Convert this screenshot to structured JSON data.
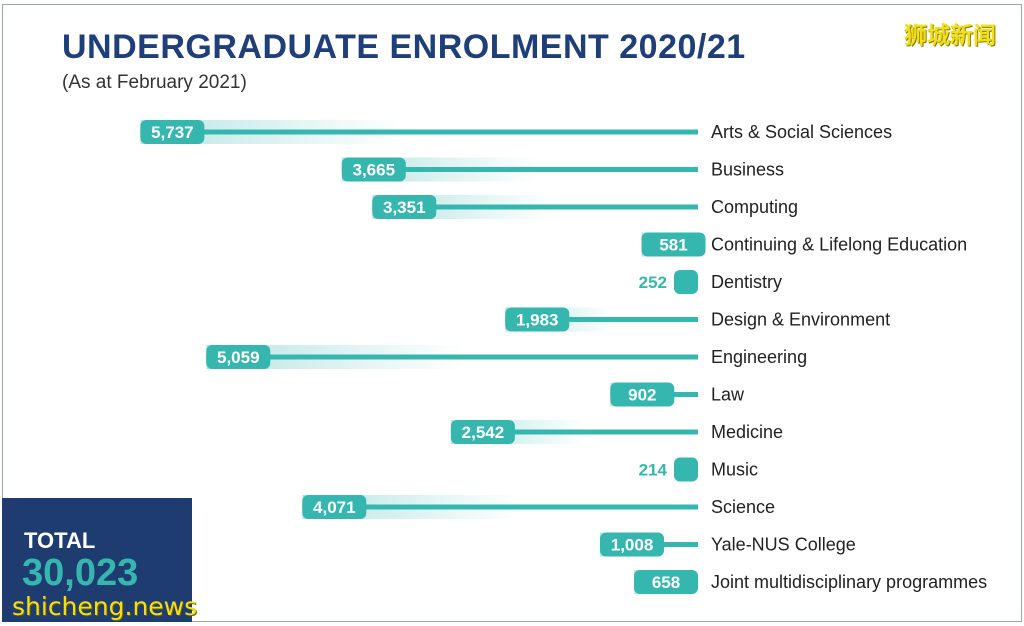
{
  "header": {
    "title": "UNDERGRADUATE ENROLMENT 2020/21",
    "subtitle": "(As at February 2021)"
  },
  "watermarks": {
    "top": "狮城新闻",
    "bottom": "shicheng.news"
  },
  "total": {
    "label": "TOTAL",
    "value": "30,023"
  },
  "colors": {
    "teal": "#35b7b0",
    "navy": "#1e3c70",
    "title": "#1f3f7a",
    "watermark": "#f2df1c"
  },
  "chart_data": {
    "type": "bar",
    "orientation": "horizontal",
    "title": "UNDERGRADUATE ENROLMENT 2020/21",
    "subtitle": "(As at February 2021)",
    "xlabel": "",
    "ylabel": "",
    "grid": false,
    "categories": [
      "Arts & Social Sciences",
      "Business",
      "Computing",
      "Continuing & Lifelong Education",
      "Dentistry",
      "Design & Environment",
      "Engineering",
      "Law",
      "Medicine",
      "Music",
      "Science",
      "Yale-NUS College",
      "Joint multidisciplinary programmes"
    ],
    "values": [
      5737,
      3665,
      3351,
      581,
      252,
      1983,
      5059,
      902,
      2542,
      214,
      4071,
      1008,
      658
    ],
    "value_labels": [
      "5,737",
      "3,665",
      "3,351",
      "581",
      "252",
      "1,983",
      "5,059",
      "902",
      "2,542",
      "214",
      "4,071",
      "1,008",
      "658"
    ]
  }
}
